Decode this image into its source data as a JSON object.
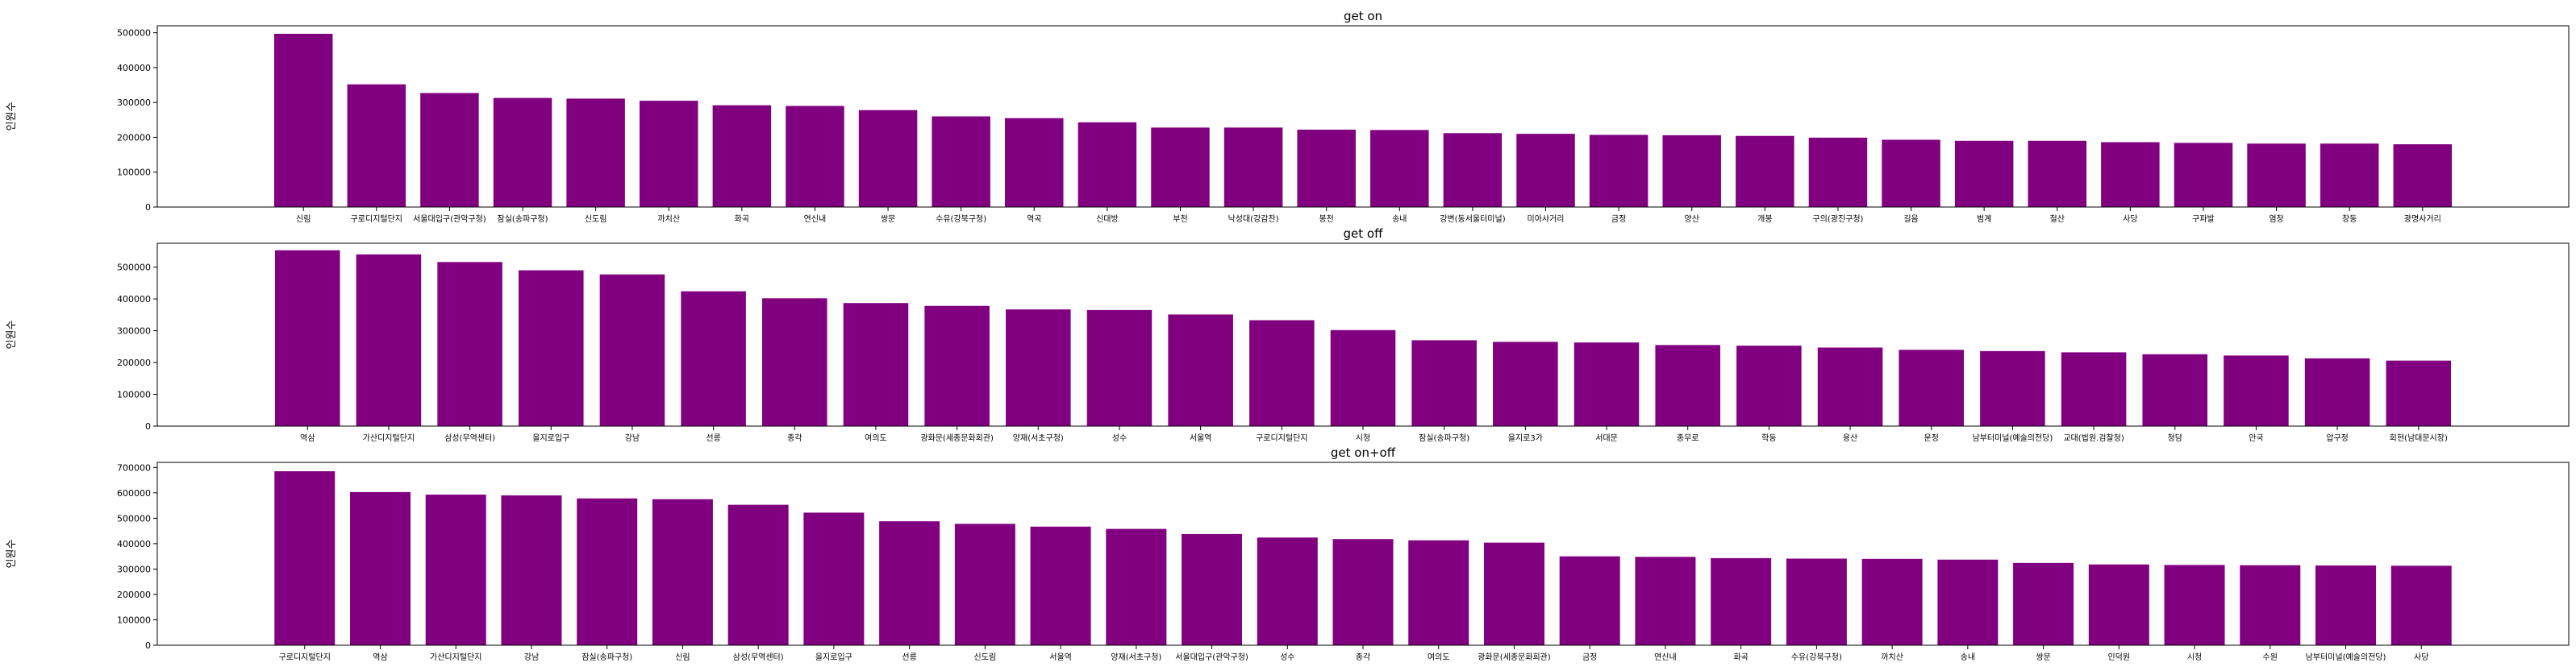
{
  "figure": {
    "bar_color": "#800080",
    "axis_color": "#000000",
    "background": "#ffffff"
  },
  "chart_data": [
    {
      "type": "bar",
      "title": "get on",
      "xlabel": "",
      "ylabel": "인원수",
      "ylim": [
        0,
        520000
      ],
      "yticks": [
        0,
        100000,
        200000,
        300000,
        400000,
        500000
      ],
      "ytick_labels": [
        "0",
        "100000",
        "200000",
        "300000",
        "400000",
        "500000"
      ],
      "categories": [
        "신림",
        "구로디지털단지",
        "서울대입구(관악구청)",
        "잠실(송파구청)",
        "신도림",
        "까치산",
        "화곡",
        "연신내",
        "쌍문",
        "수유(강북구청)",
        "역곡",
        "신대방",
        "부천",
        "낙성대(강감찬)",
        "봉천",
        "송내",
        "강변(동서울터미널)",
        "미아사거리",
        "금정",
        "양산",
        "개봉",
        "구의(광진구청)",
        "길음",
        "범계",
        "철산",
        "사당",
        "구파발",
        "염창",
        "창동",
        "광명사거리"
      ],
      "values": [
        497000,
        352000,
        327000,
        313000,
        311000,
        305000,
        292000,
        290000,
        278000,
        260000,
        255000,
        243000,
        228000,
        228000,
        222000,
        221000,
        212000,
        210000,
        207000,
        206000,
        204000,
        199000,
        193000,
        190000,
        190000,
        186000,
        184000,
        182000,
        182000,
        180000
      ]
    },
    {
      "type": "bar",
      "title": "get off",
      "xlabel": "",
      "ylabel": "인원수",
      "ylim": [
        0,
        575000
      ],
      "yticks": [
        0,
        100000,
        200000,
        300000,
        400000,
        500000
      ],
      "ytick_labels": [
        "0",
        "100000",
        "200000",
        "300000",
        "400000",
        "500000"
      ],
      "categories": [
        "역삼",
        "가산디지털단지",
        "삼성(무역센터)",
        "을지로입구",
        "강남",
        "선릉",
        "종각",
        "여의도",
        "광화문(세종문화회관)",
        "양재(서초구청)",
        "성수",
        "서울역",
        "구로디지털단지",
        "시청",
        "잠실(송파구청)",
        "을지로3가",
        "서대문",
        "종무로",
        "학동",
        "용산",
        "운정",
        "남부터미널(예술의전당)",
        "교대(법원.검찰청)",
        "청담",
        "안국",
        "압구정",
        "회현(남대문시장)"
      ],
      "values": [
        553000,
        540000,
        516000,
        490000,
        477000,
        424000,
        402000,
        387000,
        378000,
        367000,
        365000,
        351000,
        333000,
        302000,
        270000,
        265000,
        263000,
        255000,
        253000,
        247000,
        240000,
        236000,
        232000,
        226000,
        222000,
        213000,
        206000
      ]
    },
    {
      "type": "bar",
      "title": "get on+off",
      "xlabel": "",
      "ylabel": "인원수",
      "ylim": [
        0,
        720000
      ],
      "yticks": [
        0,
        100000,
        200000,
        300000,
        400000,
        500000,
        600000,
        700000
      ],
      "ytick_labels": [
        "0",
        "100000",
        "200000",
        "300000",
        "400000",
        "500000",
        "600000",
        "700000"
      ],
      "categories": [
        "구로디지털단지",
        "역삼",
        "가산디지털단지",
        "강남",
        "잠실(송파구청)",
        "신림",
        "삼성(무역센터)",
        "을지로입구",
        "선릉",
        "신도림",
        "서울역",
        "양재(서초구청)",
        "서울대입구(관악구청)",
        "성수",
        "종각",
        "여의도",
        "광화문(세종문화회관)",
        "금정",
        "연신내",
        "화곡",
        "수유(강북구청)",
        "까치산",
        "송내",
        "쌍문",
        "인덕원",
        "시청",
        "수원",
        "남부터미널(예술의전당)",
        "사당"
      ],
      "values": [
        685000,
        603000,
        593000,
        590000,
        578000,
        575000,
        553000,
        522000,
        488000,
        478000,
        467000,
        458000,
        438000,
        424000,
        418000,
        413000,
        404000,
        350000,
        348000,
        343000,
        341000,
        340000,
        337000,
        324000,
        318000,
        316000,
        315000,
        314000,
        313000
      ]
    }
  ]
}
